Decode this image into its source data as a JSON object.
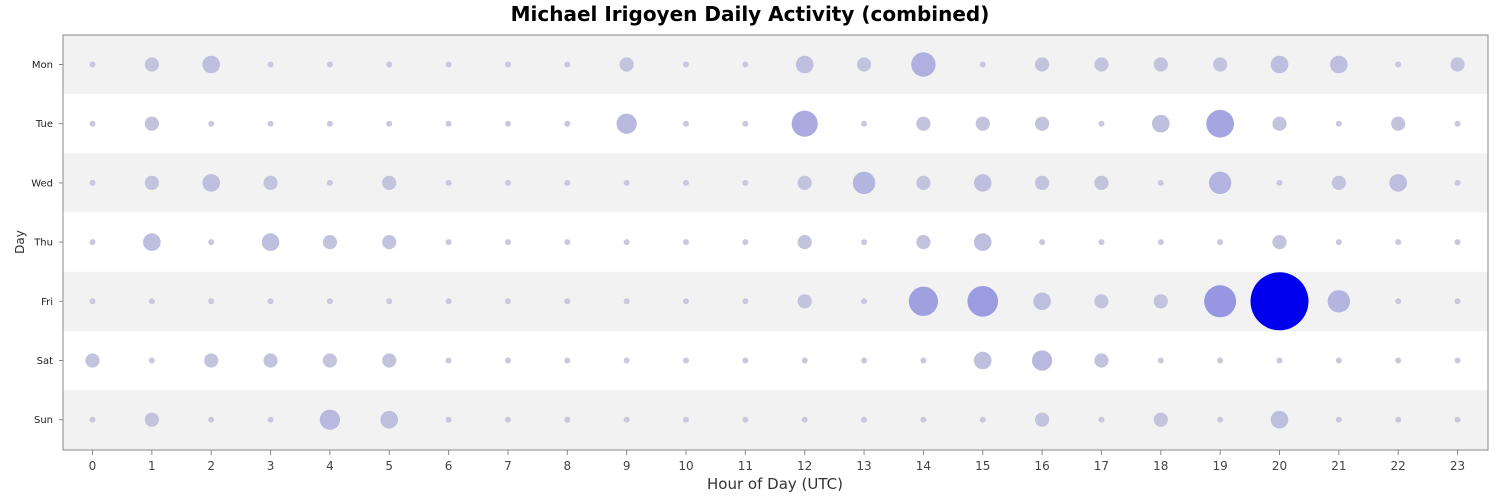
{
  "chart_data": {
    "type": "scatter",
    "title": "Michael Irigoyen Daily Activity (combined)",
    "xlabel": "Hour of Day (UTC)",
    "ylabel": "Day",
    "x_categories": [
      "0",
      "1",
      "2",
      "3",
      "4",
      "5",
      "6",
      "7",
      "8",
      "9",
      "10",
      "11",
      "12",
      "13",
      "14",
      "15",
      "16",
      "17",
      "18",
      "19",
      "20",
      "21",
      "22",
      "23"
    ],
    "y_categories": [
      "Mon",
      "Tue",
      "Wed",
      "Thu",
      "Fri",
      "Sat",
      "Sun"
    ],
    "size_encoding": "activity count",
    "values": [
      [
        0,
        1,
        2,
        0,
        0,
        0,
        0,
        0,
        0,
        1,
        0,
        0,
        2,
        1,
        5,
        0,
        1,
        1,
        1,
        1,
        2,
        2,
        0,
        1
      ],
      [
        0,
        1,
        0,
        0,
        0,
        0,
        0,
        0,
        0,
        3,
        0,
        0,
        6,
        0,
        1,
        1,
        1,
        0,
        2,
        7,
        1,
        0,
        1,
        0
      ],
      [
        0,
        1,
        2,
        1,
        0,
        1,
        0,
        0,
        0,
        0,
        0,
        0,
        1,
        4,
        1,
        2,
        1,
        1,
        0,
        4,
        0,
        1,
        2,
        0
      ],
      [
        0,
        2,
        0,
        2,
        1,
        1,
        0,
        0,
        0,
        0,
        0,
        0,
        1,
        0,
        1,
        2,
        0,
        0,
        0,
        0,
        1,
        0,
        0,
        0
      ],
      [
        0,
        0,
        0,
        0,
        0,
        0,
        0,
        0,
        0,
        0,
        0,
        0,
        1,
        0,
        8,
        9,
        2,
        1,
        1,
        10,
        40,
        4,
        0,
        0
      ],
      [
        1,
        0,
        1,
        1,
        1,
        1,
        0,
        0,
        0,
        0,
        0,
        0,
        0,
        0,
        0,
        2,
        3,
        1,
        0,
        0,
        0,
        0,
        0,
        0
      ],
      [
        0,
        1,
        0,
        0,
        3,
        2,
        0,
        0,
        0,
        0,
        0,
        0,
        0,
        0,
        0,
        0,
        1,
        0,
        1,
        0,
        2,
        0,
        0,
        0
      ]
    ],
    "colors": {
      "bubble_low": "#c8c8de",
      "bubble_high": "#0000ee",
      "band_shade": "#f2f2f2",
      "band_plain": "#ffffff"
    },
    "grid": true,
    "legend": "none"
  }
}
